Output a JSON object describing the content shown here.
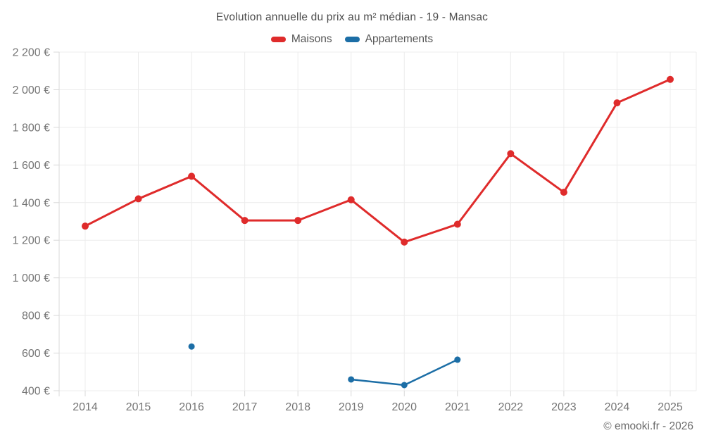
{
  "title": "Evolution annuelle du prix au m² médian - 19 - Mansac",
  "legend": [
    {
      "label": "Maisons",
      "color": "#df2b2b"
    },
    {
      "label": "Appartements",
      "color": "#1c6ea6"
    }
  ],
  "footer": "© emooki.fr - 2026",
  "colors": {
    "background": "#ffffff",
    "grid": "#ececec",
    "axis": "#d8d8d8",
    "tick_text": "#757575",
    "title_text": "#4c4c4c",
    "footer_text": "#6b6b6b",
    "maisons": "#df2b2b",
    "appartements": "#1c6ea6"
  },
  "chart_data": {
    "type": "line",
    "title": "Evolution annuelle du prix au m² médian - 19 - Mansac",
    "categories": [
      "2014",
      "2015",
      "2016",
      "2017",
      "2018",
      "2019",
      "2020",
      "2021",
      "2022",
      "2023",
      "2024",
      "2025"
    ],
    "series": [
      {
        "name": "Maisons",
        "color": "#df2b2b",
        "values": [
          1275,
          1420,
          1540,
          1305,
          1305,
          1415,
          1190,
          1285,
          1660,
          1455,
          1930,
          2055
        ]
      },
      {
        "name": "Appartements",
        "color": "#1c6ea6",
        "values": [
          null,
          null,
          635,
          null,
          null,
          460,
          430,
          565,
          null,
          null,
          null,
          null
        ]
      }
    ],
    "xlabel": "",
    "ylabel": "",
    "ylim": [
      400,
      2200
    ],
    "y_tick_step": 200,
    "y_tick_labels": [
      "400 €",
      "600 €",
      "800 €",
      "1 000 €",
      "1 200 €",
      "1 400 €",
      "1 600 €",
      "1 800 €",
      "2 000 €",
      "2 200 €"
    ],
    "grid": true,
    "legend_position": "top",
    "currency": "€"
  }
}
